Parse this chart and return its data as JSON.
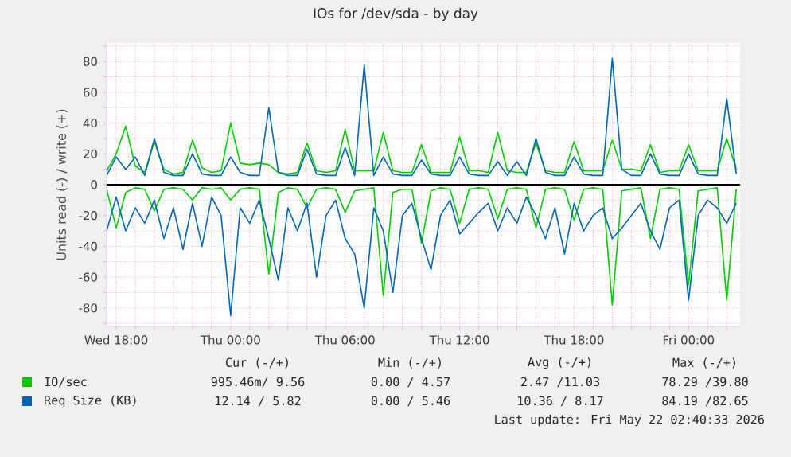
{
  "chart_data": {
    "type": "line",
    "title": "IOs for /dev/sda - by day",
    "ylabel": "Units read (-) / write (+)",
    "x": [
      "2026-05-20T17:30",
      "2026-05-20T18:00",
      "2026-05-20T18:30",
      "2026-05-20T19:00",
      "2026-05-20T19:30",
      "2026-05-20T20:00",
      "2026-05-20T20:30",
      "2026-05-20T21:00",
      "2026-05-20T21:30",
      "2026-05-20T22:00",
      "2026-05-20T22:30",
      "2026-05-20T23:00",
      "2026-05-20T23:30",
      "2026-05-21T00:00",
      "2026-05-21T00:30",
      "2026-05-21T01:00",
      "2026-05-21T01:30",
      "2026-05-21T02:00",
      "2026-05-21T02:30",
      "2026-05-21T03:00",
      "2026-05-21T03:30",
      "2026-05-21T04:00",
      "2026-05-21T04:30",
      "2026-05-21T05:00",
      "2026-05-21T05:30",
      "2026-05-21T06:00",
      "2026-05-21T06:30",
      "2026-05-21T07:00",
      "2026-05-21T07:30",
      "2026-05-21T08:00",
      "2026-05-21T08:30",
      "2026-05-21T09:00",
      "2026-05-21T09:30",
      "2026-05-21T10:00",
      "2026-05-21T10:30",
      "2026-05-21T11:00",
      "2026-05-21T11:30",
      "2026-05-21T12:00",
      "2026-05-21T12:30",
      "2026-05-21T13:00",
      "2026-05-21T13:30",
      "2026-05-21T14:00",
      "2026-05-21T14:30",
      "2026-05-21T15:00",
      "2026-05-21T15:30",
      "2026-05-21T16:00",
      "2026-05-21T16:30",
      "2026-05-21T17:00",
      "2026-05-21T17:30",
      "2026-05-21T18:00",
      "2026-05-21T18:30",
      "2026-05-21T19:00",
      "2026-05-21T19:30",
      "2026-05-21T20:00",
      "2026-05-21T20:30",
      "2026-05-21T21:00",
      "2026-05-21T21:30",
      "2026-05-21T22:00",
      "2026-05-21T22:30",
      "2026-05-21T23:00",
      "2026-05-21T23:30",
      "2026-05-22T00:00",
      "2026-05-22T00:30",
      "2026-05-22T01:00",
      "2026-05-22T01:30",
      "2026-05-22T02:00",
      "2026-05-22T02:30"
    ],
    "series": [
      {
        "name": "IO/sec",
        "color": "#00cc00",
        "values": [
          9,
          20,
          38,
          12,
          8,
          28,
          10,
          7,
          8,
          29,
          11,
          8,
          9,
          40,
          14,
          13,
          14,
          13,
          8,
          7,
          8,
          27,
          9,
          8,
          9,
          36,
          9,
          9,
          9,
          34,
          9,
          8,
          8,
          26,
          8,
          8,
          8,
          31,
          9,
          9,
          8,
          34,
          9,
          8,
          8,
          27,
          9,
          8,
          8,
          28,
          9,
          9,
          9,
          29,
          10,
          10,
          9,
          26,
          8,
          9,
          9,
          26,
          9,
          9,
          9,
          30,
          10
        ]
      },
      {
        "color": "#00cc00",
        "values": [
          -3,
          -28,
          -5,
          -2,
          -3,
          -17,
          -3,
          -2,
          -3,
          -10,
          -2,
          -3,
          -2,
          -10,
          -3,
          -2,
          -3,
          -58,
          -5,
          -2,
          -3,
          -15,
          -3,
          -2,
          -3,
          -18,
          -4,
          -3,
          -2,
          -72,
          -5,
          -3,
          -3,
          -38,
          -4,
          -2,
          -3,
          -25,
          -3,
          -2,
          -3,
          -22,
          -3,
          -2,
          -3,
          -28,
          -3,
          -2,
          -3,
          -23,
          -3,
          -2,
          -3,
          -78,
          -4,
          -3,
          -2,
          -35,
          -3,
          -2,
          -3,
          -65,
          -4,
          -3,
          -2,
          -75,
          -3
        ]
      },
      {
        "name": "Req Size (KB)",
        "color": "#0066b3",
        "values": [
          6,
          18,
          10,
          18,
          6,
          30,
          8,
          6,
          6,
          20,
          7,
          6,
          6,
          18,
          8,
          6,
          6,
          50,
          8,
          6,
          6,
          23,
          7,
          6,
          6,
          24,
          6,
          78,
          6,
          18,
          7,
          6,
          6,
          16,
          7,
          6,
          6,
          18,
          7,
          6,
          6,
          15,
          6,
          15,
          6,
          30,
          8,
          6,
          6,
          18,
          7,
          6,
          6,
          82,
          10,
          6,
          6,
          20,
          7,
          6,
          6,
          20,
          7,
          6,
          6,
          56,
          7
        ]
      },
      {
        "color": "#0066b3",
        "values": [
          -30,
          -8,
          -30,
          -15,
          -25,
          -10,
          -35,
          -15,
          -42,
          -12,
          -40,
          -8,
          -20,
          -85,
          -15,
          -25,
          -10,
          -35,
          -62,
          -15,
          -30,
          -12,
          -60,
          -20,
          -10,
          -35,
          -45,
          -80,
          -15,
          -30,
          -70,
          -20,
          -12,
          -35,
          -55,
          -20,
          -10,
          -32,
          -25,
          -18,
          -12,
          -30,
          -15,
          -25,
          -8,
          -20,
          -35,
          -15,
          -45,
          -12,
          -30,
          -20,
          -15,
          -35,
          -28,
          -20,
          -12,
          -30,
          -42,
          -15,
          -10,
          -75,
          -20,
          -10,
          -15,
          -25,
          -12
        ]
      }
    ],
    "xlim": [
      "2026-05-20T17:30",
      "2026-05-22T02:42"
    ],
    "xticks": [
      {
        "value": "2026-05-20T18:00",
        "label": "Wed 18:00"
      },
      {
        "value": "2026-05-20T19:00",
        "label": null
      },
      {
        "value": "2026-05-20T20:00",
        "label": null
      },
      {
        "value": "2026-05-20T21:00",
        "label": null
      },
      {
        "value": "2026-05-20T22:00",
        "label": null
      },
      {
        "value": "2026-05-20T23:00",
        "label": null
      },
      {
        "value": "2026-05-21T00:00",
        "label": "Thu 00:00"
      },
      {
        "value": "2026-05-21T01:00",
        "label": null
      },
      {
        "value": "2026-05-21T02:00",
        "label": null
      },
      {
        "value": "2026-05-21T03:00",
        "label": null
      },
      {
        "value": "2026-05-21T04:00",
        "label": null
      },
      {
        "value": "2026-05-21T05:00",
        "label": null
      },
      {
        "value": "2026-05-21T06:00",
        "label": "Thu 06:00"
      },
      {
        "value": "2026-05-21T07:00",
        "label": null
      },
      {
        "value": "2026-05-21T08:00",
        "label": null
      },
      {
        "value": "2026-05-21T09:00",
        "label": null
      },
      {
        "value": "2026-05-21T10:00",
        "label": null
      },
      {
        "value": "2026-05-21T11:00",
        "label": null
      },
      {
        "value": "2026-05-21T12:00",
        "label": "Thu 12:00"
      },
      {
        "value": "2026-05-21T13:00",
        "label": null
      },
      {
        "value": "2026-05-21T14:00",
        "label": null
      },
      {
        "value": "2026-05-21T15:00",
        "label": null
      },
      {
        "value": "2026-05-21T16:00",
        "label": null
      },
      {
        "value": "2026-05-21T17:00",
        "label": null
      },
      {
        "value": "2026-05-21T18:00",
        "label": "Thu 18:00"
      },
      {
        "value": "2026-05-21T19:00",
        "label": null
      },
      {
        "value": "2026-05-21T20:00",
        "label": null
      },
      {
        "value": "2026-05-21T21:00",
        "label": null
      },
      {
        "value": "2026-05-21T22:00",
        "label": null
      },
      {
        "value": "2026-05-21T23:00",
        "label": null
      },
      {
        "value": "2026-05-22T00:00",
        "label": "Fri 00:00"
      },
      {
        "value": "2026-05-22T01:00",
        "label": null
      },
      {
        "value": "2026-05-22T02:00",
        "label": null
      }
    ],
    "ylim": [
      -92,
      92
    ],
    "yticks": [
      {
        "value": -90,
        "label": null
      },
      -80,
      {
        "value": -70,
        "label": null
      },
      -60,
      {
        "value": -50,
        "label": null
      },
      -40,
      {
        "value": -30,
        "label": null
      },
      -20,
      {
        "value": -10,
        "label": null
      },
      0,
      {
        "value": 10,
        "label": null
      },
      20,
      {
        "value": 30,
        "label": null
      },
      40,
      {
        "value": 50,
        "label": null
      },
      60,
      {
        "value": 70,
        "label": null
      },
      80,
      {
        "value": 90,
        "label": null
      }
    ],
    "ref_lines": [
      {
        "axis": "y",
        "value": 0,
        "color": "#000000"
      }
    ],
    "grid": true,
    "legend": "bottom left",
    "marker": "none",
    "line_style": "solid",
    "annotations": [
      "Cur (-/+)",
      "Min (-/+)",
      "Avg (-/+)",
      "Max (-/+)",
      "995.46m/ 9.56",
      "0.00 / 4.57",
      "2.47 /11.03",
      "78.29 /39.80",
      "12.14 / 5.82",
      "0.00 / 5.46",
      "10.36 / 8.17",
      "84.19 /82.65",
      "Last update: Fri May 22 02:40:33 2026"
    ]
  }
}
